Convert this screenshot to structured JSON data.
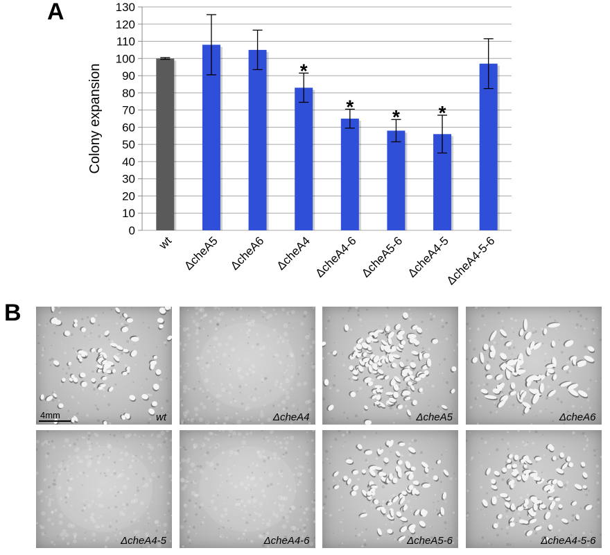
{
  "panels": {
    "a_label": "A",
    "b_label": "B"
  },
  "chart_data": {
    "type": "bar",
    "categories": [
      "wt",
      "ΔcheA5",
      "ΔcheA6",
      "ΔcheA4",
      "ΔcheA4-6",
      "ΔcheA5-6",
      "ΔcheA4-5",
      "ΔcheA4-5-6"
    ],
    "values": [
      100,
      108,
      105,
      83,
      65,
      58,
      56,
      97
    ],
    "error": [
      0.5,
      17.5,
      11.5,
      8.5,
      5.5,
      6.5,
      11,
      14.5
    ],
    "significant": [
      false,
      false,
      false,
      true,
      true,
      true,
      true,
      false
    ],
    "significance_marker": "*",
    "bar_colors": [
      "#5a5a5a",
      "#2f4fd8",
      "#2f4fd8",
      "#2f4fd8",
      "#2f4fd8",
      "#2f4fd8",
      "#2f4fd8",
      "#2f4fd8"
    ],
    "ylabel": "Colony expansion",
    "xlabel": "",
    "ylim": [
      0,
      130
    ],
    "yticks": [
      0,
      10,
      20,
      30,
      40,
      50,
      60,
      70,
      80,
      90,
      100,
      110,
      120,
      130
    ],
    "grid": true
  },
  "micrographs": {
    "scale_label": "4mm",
    "items": [
      {
        "label": "wt",
        "pattern": "sparse-aggregates"
      },
      {
        "label": "ΔcheA4",
        "pattern": "smooth"
      },
      {
        "label": "ΔcheA5",
        "pattern": "dense-center"
      },
      {
        "label": "ΔcheA6",
        "pattern": "elongated-aggregates"
      },
      {
        "label": "ΔcheA4-5",
        "pattern": "smooth"
      },
      {
        "label": "ΔcheA4-6",
        "pattern": "smooth"
      },
      {
        "label": "ΔcheA5-6",
        "pattern": "ring-aggregates"
      },
      {
        "label": "ΔcheA4-5-6",
        "pattern": "ring-aggregates"
      }
    ]
  }
}
